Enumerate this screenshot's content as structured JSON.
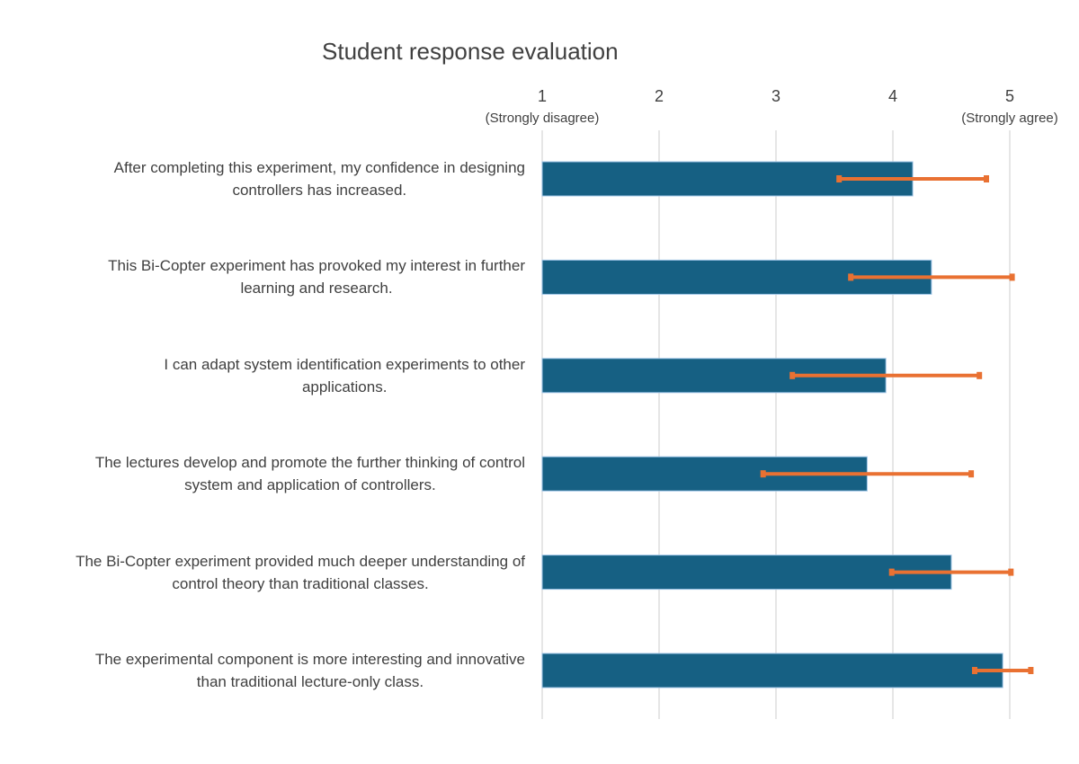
{
  "chart_data": {
    "type": "bar",
    "orientation": "horizontal",
    "title": "Student response evaluation",
    "xlim": [
      1,
      5
    ],
    "x_ticks": [
      {
        "value": 1,
        "label": "1",
        "sublabel": "(Strongly disagree)"
      },
      {
        "value": 2,
        "label": "2",
        "sublabel": ""
      },
      {
        "value": 3,
        "label": "3",
        "sublabel": ""
      },
      {
        "value": 4,
        "label": "4",
        "sublabel": ""
      },
      {
        "value": 5,
        "label": "5",
        "sublabel": "(Strongly agree)"
      }
    ],
    "axis_position": "top",
    "grid": true,
    "categories": [
      "After completing this experiment, my confidence in designing\ncontrollers has increased.",
      "This Bi-Copter experiment has provoked my interest in further\nlearning and research.",
      "I can adapt system identification experiments to other\napplications.",
      "The lectures develop and promote the further thinking of control\nsystem and application of controllers.",
      "The Bi-Copter experiment provided much deeper understanding of\ncontrol theory than traditional classes.",
      "The experimental component is more interesting and innovative\nthan traditional lecture-only class."
    ],
    "values": [
      4.17,
      4.33,
      3.94,
      3.78,
      4.5,
      4.94
    ],
    "error": [
      0.63,
      0.69,
      0.8,
      0.89,
      0.51,
      0.24
    ],
    "colors": {
      "bar": "#166083",
      "bar_edge": "#9dc3e6",
      "error_bar": "#e97132",
      "grid": "#d9d9d9"
    }
  }
}
